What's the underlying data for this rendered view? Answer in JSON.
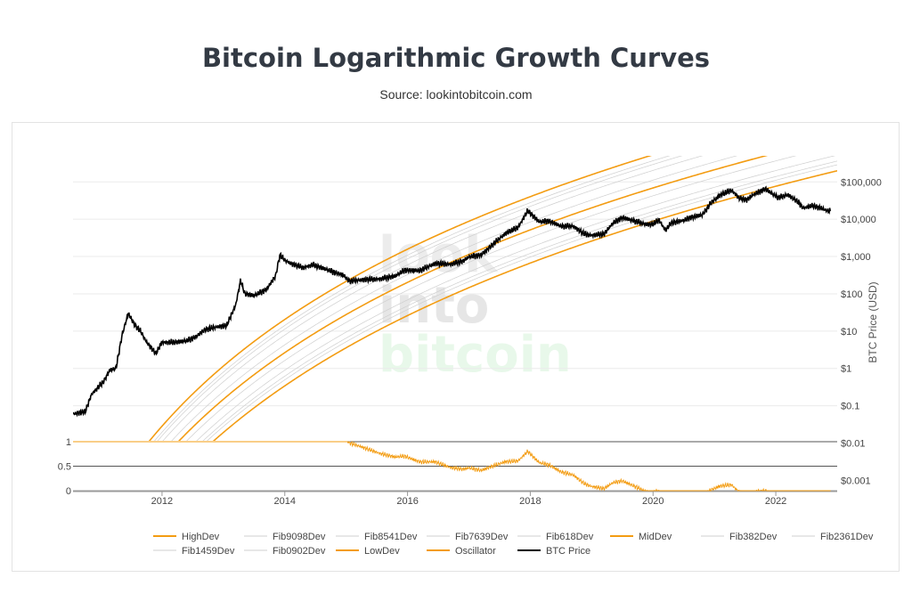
{
  "header": {
    "title": "Bitcoin Logarithmic Growth Curves",
    "subtitle": "Source: lookintobitcoin.com"
  },
  "watermark": {
    "line1": "look",
    "line2": "into",
    "line3": "bitcoin"
  },
  "chart_data": {
    "type": "line",
    "title": "Bitcoin Logarithmic Growth Curves",
    "subtitle": "Source: lookintobitcoin.com",
    "x_axis": {
      "label": "",
      "range": [
        "2010-07",
        "2023-01"
      ],
      "ticks": [
        "2012",
        "2014",
        "2016",
        "2018",
        "2020",
        "2022"
      ]
    },
    "y_axis_price": {
      "label": "BTC Price (USD)",
      "scale": "log",
      "position": "right",
      "range": [
        0.005,
        500000
      ],
      "ticks": [
        {
          "value": 100000,
          "label": "$100,000"
        },
        {
          "value": 10000,
          "label": "$10,000"
        },
        {
          "value": 1000,
          "label": "$1,000"
        },
        {
          "value": 100,
          "label": "$100"
        },
        {
          "value": 10,
          "label": "$10"
        },
        {
          "value": 1,
          "label": "$1"
        },
        {
          "value": 0.1,
          "label": "$0.1"
        },
        {
          "value": 0.01,
          "label": "$0.01"
        },
        {
          "value": 0.001,
          "label": "$0.001"
        }
      ]
    },
    "y_axis_oscillator": {
      "label": "",
      "range": [
        0,
        1
      ],
      "position": "left",
      "ticks": [
        {
          "value": 1,
          "label": "1"
        },
        {
          "value": 0.5,
          "label": "0.5"
        },
        {
          "value": 0,
          "label": "0"
        }
      ]
    },
    "grid": true,
    "legend_position": "bottom",
    "bands": {
      "model": "log10(price) = a * ln(year - 2009) + b",
      "slope_a": 5.6,
      "low_intercept_b": -9.48,
      "high_intercept_b": -7.7,
      "x_start": 2010.6,
      "x_end": 2023.0
    },
    "series": [
      {
        "name": "HighDev",
        "kind": "band",
        "fraction": 1.0,
        "color": "#f39c12",
        "width": 1.6
      },
      {
        "name": "Fib9098Dev",
        "kind": "band",
        "fraction": 0.9098,
        "color": "#cfcfcf",
        "width": 0.7
      },
      {
        "name": "Fib8541Dev",
        "kind": "band",
        "fraction": 0.8541,
        "color": "#cfcfcf",
        "width": 0.7
      },
      {
        "name": "Fib7639Dev",
        "kind": "band",
        "fraction": 0.7639,
        "color": "#cfcfcf",
        "width": 0.7
      },
      {
        "name": "Fib618Dev",
        "kind": "band",
        "fraction": 0.618,
        "color": "#cfcfcf",
        "width": 0.7
      },
      {
        "name": "MidDev",
        "kind": "band",
        "fraction": 0.5,
        "color": "#f39c12",
        "width": 1.6
      },
      {
        "name": "Fib382Dev",
        "kind": "band",
        "fraction": 0.382,
        "color": "#cfcfcf",
        "width": 0.7
      },
      {
        "name": "Fib2361Dev",
        "kind": "band",
        "fraction": 0.2361,
        "color": "#cfcfcf",
        "width": 0.7
      },
      {
        "name": "Fib1459Dev",
        "kind": "band",
        "fraction": 0.1459,
        "color": "#cfcfcf",
        "width": 0.7
      },
      {
        "name": "Fib0902Dev",
        "kind": "band",
        "fraction": 0.0902,
        "color": "#cfcfcf",
        "width": 0.7
      },
      {
        "name": "LowDev",
        "kind": "band",
        "fraction": 0.0,
        "color": "#f39c12",
        "width": 1.6
      },
      {
        "name": "Oscillator",
        "kind": "oscillator",
        "color": "#f39c12",
        "width": 1.0
      },
      {
        "name": "BTC Price",
        "kind": "price",
        "color": "#000000",
        "width": 1.6,
        "points": [
          [
            2010.55,
            0.06
          ],
          [
            2010.75,
            0.07
          ],
          [
            2010.85,
            0.2
          ],
          [
            2010.95,
            0.3
          ],
          [
            2011.05,
            0.45
          ],
          [
            2011.15,
            0.9
          ],
          [
            2011.25,
            1.0
          ],
          [
            2011.35,
            8.0
          ],
          [
            2011.45,
            30.0
          ],
          [
            2011.55,
            15.0
          ],
          [
            2011.65,
            10.0
          ],
          [
            2011.75,
            5.0
          ],
          [
            2011.9,
            2.5
          ],
          [
            2012.0,
            5.0
          ],
          [
            2012.2,
            5.0
          ],
          [
            2012.4,
            5.5
          ],
          [
            2012.55,
            7.0
          ],
          [
            2012.7,
            11.0
          ],
          [
            2012.9,
            13.0
          ],
          [
            2013.05,
            14.0
          ],
          [
            2013.2,
            50.0
          ],
          [
            2013.28,
            230.0
          ],
          [
            2013.35,
            100.0
          ],
          [
            2013.5,
            90.0
          ],
          [
            2013.7,
            130.0
          ],
          [
            2013.85,
            300.0
          ],
          [
            2013.92,
            1100.0
          ],
          [
            2014.0,
            800.0
          ],
          [
            2014.1,
            650.0
          ],
          [
            2014.3,
            500.0
          ],
          [
            2014.45,
            600.0
          ],
          [
            2014.6,
            500.0
          ],
          [
            2014.8,
            380.0
          ],
          [
            2014.95,
            320.0
          ],
          [
            2015.05,
            220.0
          ],
          [
            2015.3,
            240.0
          ],
          [
            2015.55,
            250.0
          ],
          [
            2015.8,
            300.0
          ],
          [
            2015.95,
            430.0
          ],
          [
            2016.2,
            420.0
          ],
          [
            2016.45,
            650.0
          ],
          [
            2016.7,
            620.0
          ],
          [
            2016.9,
            750.0
          ],
          [
            2017.0,
            980.0
          ],
          [
            2017.2,
            1100.0
          ],
          [
            2017.4,
            2200.0
          ],
          [
            2017.6,
            4200.0
          ],
          [
            2017.8,
            6000.0
          ],
          [
            2017.96,
            17000.0
          ],
          [
            2018.05,
            12000.0
          ],
          [
            2018.15,
            8500.0
          ],
          [
            2018.3,
            9000.0
          ],
          [
            2018.5,
            6500.0
          ],
          [
            2018.7,
            6500.0
          ],
          [
            2018.88,
            4000.0
          ],
          [
            2019.0,
            3700.0
          ],
          [
            2019.2,
            4000.0
          ],
          [
            2019.35,
            8000.0
          ],
          [
            2019.5,
            11000.0
          ],
          [
            2019.65,
            9500.0
          ],
          [
            2019.85,
            7500.0
          ],
          [
            2019.98,
            7200.0
          ],
          [
            2020.1,
            9500.0
          ],
          [
            2020.2,
            5000.0
          ],
          [
            2020.3,
            8000.0
          ],
          [
            2020.5,
            9300.0
          ],
          [
            2020.6,
            11000.0
          ],
          [
            2020.8,
            13000.0
          ],
          [
            2020.95,
            28000.0
          ],
          [
            2021.1,
            45000.0
          ],
          [
            2021.28,
            60000.0
          ],
          [
            2021.4,
            37000.0
          ],
          [
            2021.52,
            33000.0
          ],
          [
            2021.65,
            47000.0
          ],
          [
            2021.83,
            65000.0
          ],
          [
            2021.95,
            47000.0
          ],
          [
            2022.05,
            38000.0
          ],
          [
            2022.2,
            45000.0
          ],
          [
            2022.35,
            30000.0
          ],
          [
            2022.45,
            20000.0
          ],
          [
            2022.6,
            23000.0
          ],
          [
            2022.75,
            19500.0
          ],
          [
            2022.85,
            16500.0
          ],
          [
            2022.9,
            17000.0
          ]
        ]
      }
    ]
  }
}
